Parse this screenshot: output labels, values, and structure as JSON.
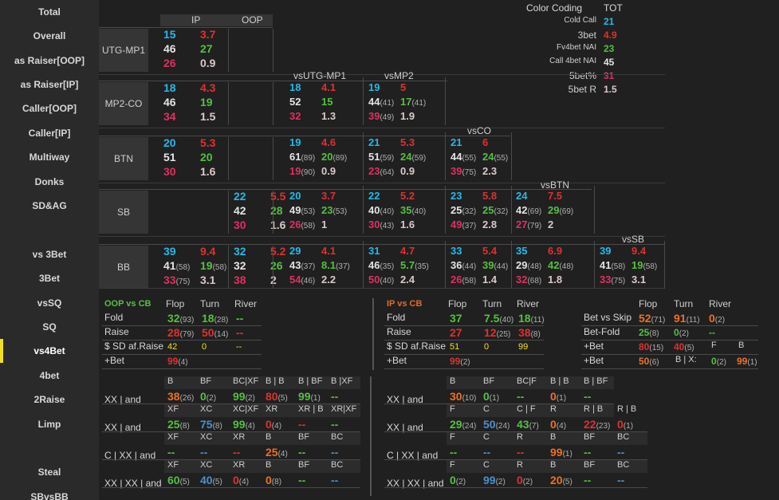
{
  "sidebar": {
    "items": [
      "Total",
      "Overall",
      "as Raiser[OOP]",
      "as Raiser[IP]",
      "Caller[OOP]",
      "Caller[IP]",
      "Multiway",
      "Donks",
      "SD&AG",
      "vs 3Bet",
      "3Bet",
      "vsSQ",
      "SQ",
      "vs4Bet",
      "4bet",
      "2Raise",
      "Limp",
      "Steal",
      "SBvsBB"
    ],
    "active": "vs4Bet"
  },
  "legend": {
    "title": "Color Coding",
    "tot": "TOT",
    "rows": [
      {
        "label": "Cold Call",
        "value": "21",
        "color": "#25b9e8"
      },
      {
        "label": "3bet",
        "value": "4.9",
        "color": "#e03030"
      },
      {
        "label": "Fv4bet NAI",
        "value": "23",
        "color": "#55c040"
      },
      {
        "label": "Call 4bet NAI",
        "value": "45",
        "color": "#e4e4e4"
      },
      {
        "label": "5bet%",
        "value": "31",
        "color": "#e03060"
      },
      {
        "label": "5bet R",
        "value": "1.5",
        "color": "#dcc8c8"
      }
    ]
  },
  "grid": {
    "ip": "IP",
    "oop": "OOP",
    "vs_headers": [
      "vsUTG-MP1",
      "vsMP2",
      "vsCO",
      "vsBTN",
      "vsSB"
    ],
    "positions": [
      "UTG-MP1",
      "MP2-CO",
      "BTN",
      "SB",
      "BB"
    ],
    "rowstats": [
      [
        [
          "15",
          ""
        ],
        [
          "3.7",
          ""
        ],
        [
          "46",
          ""
        ],
        [
          "27",
          ""
        ],
        [
          "26",
          ""
        ],
        [
          "0.9",
          ""
        ]
      ],
      [
        [
          "18",
          ""
        ],
        [
          "4.3",
          ""
        ],
        [
          "46",
          ""
        ],
        [
          "19",
          ""
        ],
        [
          "34",
          ""
        ],
        [
          "1.5",
          ""
        ]
      ],
      [
        [
          "20",
          ""
        ],
        [
          "5.3",
          ""
        ],
        [
          "51",
          ""
        ],
        [
          "20",
          ""
        ],
        [
          "30",
          ""
        ],
        [
          "1.6",
          ""
        ]
      ],
      [
        [
          "22",
          ""
        ],
        [
          "5.5",
          ""
        ],
        [
          "42",
          ""
        ],
        [
          "28",
          ""
        ],
        [
          "30",
          ""
        ],
        [
          "1.6",
          ""
        ]
      ],
      [
        [
          "39",
          ""
        ],
        [
          "9.4",
          ""
        ],
        [
          "41",
          "(58)"
        ],
        [
          "19",
          "(58)"
        ],
        [
          "33",
          "(75)"
        ],
        [
          "3.1",
          ""
        ]
      ],
      [
        [
          "32",
          ""
        ],
        [
          "5.2",
          ""
        ],
        [
          "32",
          ""
        ],
        [
          "26",
          ""
        ],
        [
          "38",
          ""
        ],
        [
          "2",
          ""
        ]
      ]
    ],
    "matchups": [
      {
        "col": 0,
        "row": 1,
        "v": [
          [
            "18",
            ""
          ],
          [
            "4.1",
            ""
          ],
          [
            "52",
            ""
          ],
          [
            "15",
            ""
          ],
          [
            "32",
            ""
          ],
          [
            "1.3",
            ""
          ]
        ]
      },
      {
        "col": 1,
        "row": 1,
        "v": [
          [
            "19",
            ""
          ],
          [
            "5",
            ""
          ],
          [
            "44",
            "(41)"
          ],
          [
            "17",
            "(41)"
          ],
          [
            "39",
            "(49)"
          ],
          [
            "1.9",
            ""
          ]
        ]
      },
      {
        "col": 0,
        "row": 2,
        "v": [
          [
            "19",
            ""
          ],
          [
            "4.6",
            ""
          ],
          [
            "61",
            "(89)"
          ],
          [
            "20",
            "(89)"
          ],
          [
            "19",
            "(90)"
          ],
          [
            "0.9",
            ""
          ]
        ]
      },
      {
        "col": 1,
        "row": 2,
        "v": [
          [
            "21",
            ""
          ],
          [
            "5.3",
            ""
          ],
          [
            "51",
            "(59)"
          ],
          [
            "24",
            "(59)"
          ],
          [
            "23",
            "(64)"
          ],
          [
            "0.9",
            ""
          ]
        ]
      },
      {
        "col": 2,
        "row": 2,
        "v": [
          [
            "21",
            ""
          ],
          [
            "6",
            ""
          ],
          [
            "44",
            "(55)"
          ],
          [
            "24",
            "(55)"
          ],
          [
            "39",
            "(75)"
          ],
          [
            "2.3",
            ""
          ]
        ]
      },
      {
        "col": 0,
        "row": 3,
        "v": [
          [
            "20",
            ""
          ],
          [
            "3.7",
            ""
          ],
          [
            "49",
            "(53)"
          ],
          [
            "23",
            "(53)"
          ],
          [
            "26",
            "(58)"
          ],
          [
            "1",
            ""
          ]
        ]
      },
      {
        "col": 1,
        "row": 3,
        "v": [
          [
            "22",
            ""
          ],
          [
            "5.2",
            ""
          ],
          [
            "40",
            "(40)"
          ],
          [
            "35",
            "(40)"
          ],
          [
            "30",
            "(43)"
          ],
          [
            "1.6",
            ""
          ]
        ]
      },
      {
        "col": 2,
        "row": 3,
        "v": [
          [
            "23",
            ""
          ],
          [
            "5.8",
            ""
          ],
          [
            "25",
            "(32)"
          ],
          [
            "25",
            "(32)"
          ],
          [
            "49",
            "(37)"
          ],
          [
            "2.8",
            ""
          ]
        ]
      },
      {
        "col": 3,
        "row": 3,
        "v": [
          [
            "24",
            ""
          ],
          [
            "7.5",
            ""
          ],
          [
            "42",
            "(69)"
          ],
          [
            "29",
            "(69)"
          ],
          [
            "27",
            "(79)"
          ],
          [
            "2",
            ""
          ]
        ]
      },
      {
        "col": 0,
        "row": 4,
        "v": [
          [
            "29",
            ""
          ],
          [
            "4.1",
            ""
          ],
          [
            "43",
            "(37)"
          ],
          [
            "8.1",
            "(37)"
          ],
          [
            "54",
            "(46)"
          ],
          [
            "2.2",
            ""
          ]
        ]
      },
      {
        "col": 1,
        "row": 4,
        "v": [
          [
            "31",
            ""
          ],
          [
            "4.7",
            ""
          ],
          [
            "46",
            "(35)"
          ],
          [
            "5.7",
            "(35)"
          ],
          [
            "50",
            "(40)"
          ],
          [
            "2.4",
            ""
          ]
        ]
      },
      {
        "col": 2,
        "row": 4,
        "v": [
          [
            "33",
            ""
          ],
          [
            "5.4",
            ""
          ],
          [
            "36",
            "(44)"
          ],
          [
            "39",
            "(44)"
          ],
          [
            "26",
            "(58)"
          ],
          [
            "1.4",
            ""
          ]
        ]
      },
      {
        "col": 3,
        "row": 4,
        "v": [
          [
            "35",
            ""
          ],
          [
            "6.9",
            ""
          ],
          [
            "29",
            "(48)"
          ],
          [
            "42",
            "(48)"
          ],
          [
            "32",
            "(68)"
          ],
          [
            "1.8",
            ""
          ]
        ]
      },
      {
        "col": 4,
        "row": 4,
        "v": [
          [
            "39",
            ""
          ],
          [
            "9.4",
            ""
          ],
          [
            "41",
            "(58)"
          ],
          [
            "19",
            "(58)"
          ],
          [
            "33",
            "(75)"
          ],
          [
            "3.1",
            ""
          ]
        ]
      }
    ]
  },
  "oop_cb": {
    "title": "OOP vs CB",
    "cols": [
      "Flop",
      "Turn",
      "River"
    ],
    "rows": [
      {
        "label": "Fold",
        "cells": [
          [
            "32",
            "(93)",
            "green"
          ],
          [
            "18",
            "(28)",
            "green"
          ],
          [
            "--",
            "",
            "green"
          ]
        ]
      },
      {
        "label": "Raise",
        "cells": [
          [
            "28",
            "(79)",
            "red"
          ],
          [
            "50",
            "(14)",
            "red"
          ],
          [
            "--",
            "",
            "red"
          ]
        ]
      },
      {
        "label": "$ SD af.Raise",
        "cells": [
          [
            "42",
            "",
            "yellow"
          ],
          [
            "0",
            "",
            "yellow"
          ],
          [
            "--",
            "",
            "yellow"
          ]
        ]
      },
      {
        "label": "+Bet",
        "cells": [
          [
            "99",
            "(4)",
            "red"
          ]
        ]
      }
    ]
  },
  "ip_cb": {
    "title": "IP vs CB",
    "cols": [
      "Flop",
      "Turn",
      "River"
    ],
    "rows": [
      {
        "label": "Fold",
        "cells": [
          [
            "37",
            "",
            "green"
          ],
          [
            "7.5",
            "(40)",
            "green"
          ],
          [
            "18",
            "(11)",
            "green"
          ]
        ]
      },
      {
        "label": "Raise",
        "cells": [
          [
            "27",
            "",
            "red"
          ],
          [
            "12",
            "(25)",
            "red"
          ],
          [
            "38",
            "(8)",
            "red"
          ]
        ]
      },
      {
        "label": "$ SD af.Raise",
        "cells": [
          [
            "51",
            "",
            "yellow"
          ],
          [
            "0",
            "",
            "yellow"
          ],
          [
            "99",
            "",
            "yellow"
          ]
        ]
      },
      {
        "label": "+Bet",
        "cells": [
          [
            "99",
            "(2)",
            "red"
          ]
        ]
      }
    ]
  },
  "bvs": {
    "cols": [
      "Flop",
      "Turn",
      "River"
    ],
    "rows": [
      {
        "label": "Bet vs Skip",
        "cells": [
          [
            "52",
            "(71)",
            "orange"
          ],
          [
            "91",
            "(11)",
            "orange"
          ],
          [
            "0",
            "(2)",
            "orange"
          ]
        ]
      },
      {
        "label": "Bet-Fold",
        "cells": [
          [
            "25",
            "(8)",
            "green"
          ],
          [
            "0",
            "(2)",
            "green"
          ],
          [
            "--",
            "",
            "green"
          ]
        ]
      },
      {
        "label": "+Bet",
        "cells": [
          [
            "80",
            "(15)",
            "red"
          ],
          [
            "40",
            "(5)",
            "red"
          ]
        ],
        "extra": [
          "F",
          "B"
        ]
      },
      {
        "label": "+Bet",
        "cells": [
          [
            "50",
            "(6)",
            "orange"
          ]
        ],
        "extra2": [
          "B | X:",
          "0",
          "(2)",
          "99",
          "(1)"
        ]
      }
    ]
  },
  "xx_left": {
    "rows": [
      {
        "label": "XX | and",
        "heads": [
          "B",
          "BF",
          "BC|XF",
          "B | B",
          "B | BF",
          "B |XF"
        ],
        "cells": [
          [
            "38",
            "(26)",
            "orange"
          ],
          [
            "0",
            "(2)",
            "green"
          ],
          [
            "99",
            "(2)",
            "green"
          ],
          [
            "80",
            "(5)",
            "red"
          ],
          [
            "99",
            "(1)",
            "green"
          ],
          [
            "--",
            "",
            "green"
          ]
        ]
      },
      {
        "label": "XX | and",
        "heads": [
          "XF",
          "XC",
          "XC|XF",
          "XR",
          "XR | B",
          "XR|XF"
        ],
        "cells": [
          [
            "25",
            "(8)",
            "green"
          ],
          [
            "75",
            "(8)",
            "blue"
          ],
          [
            "99",
            "(4)",
            "green"
          ],
          [
            "0",
            "(4)",
            "red"
          ],
          [
            "--",
            "",
            "red"
          ],
          [
            "--",
            "",
            "green"
          ]
        ]
      },
      {
        "label": "C | XX | and",
        "heads": [
          "XF",
          "XC",
          "XR",
          "B",
          "BF",
          "BC"
        ],
        "cells": [
          [
            "--",
            "",
            "green"
          ],
          [
            "--",
            "",
            "blue"
          ],
          [
            "--",
            "",
            "red"
          ],
          [
            "25",
            "(4)",
            "orange"
          ],
          [
            "--",
            "",
            "green"
          ],
          [
            "--",
            "",
            "blue"
          ]
        ]
      },
      {
        "label": "XX | XX | and",
        "heads": [
          "XF",
          "XC",
          "XR",
          "B",
          "BF",
          "BC"
        ],
        "cells": [
          [
            "60",
            "(5)",
            "green"
          ],
          [
            "40",
            "(5)",
            "blue"
          ],
          [
            "0",
            "(4)",
            "red"
          ],
          [
            "0",
            "(8)",
            "orange"
          ],
          [
            "--",
            "",
            "green"
          ],
          [
            "--",
            "",
            "blue"
          ]
        ]
      }
    ]
  },
  "xx_right": {
    "rows": [
      {
        "label": "XX | and",
        "heads": [
          "B",
          "BF",
          "BC|F",
          "B | B",
          "B | BF"
        ],
        "cells": [
          [
            "30",
            "(10)",
            "orange"
          ],
          [
            "0",
            "(1)",
            "green"
          ],
          [
            "--",
            "",
            "green"
          ],
          [
            "0",
            "(1)",
            "orange"
          ],
          [
            "--",
            "",
            "green"
          ]
        ]
      },
      {
        "label": "XX | and",
        "heads": [
          "F",
          "C",
          "C | F",
          "R",
          "R | B"
        ],
        "cells": [
          [
            "29",
            "(24)",
            "green"
          ],
          [
            "50",
            "(24)",
            "blue"
          ],
          [
            "43",
            "(7)",
            "green"
          ],
          [
            "0",
            "(4)",
            "orange"
          ],
          [
            "22",
            "(23)",
            "red"
          ],
          [
            "0",
            "(1)",
            "red"
          ]
        ],
        "extra_head": "R | B"
      },
      {
        "label": "C | XX | and",
        "heads": [
          "F",
          "C",
          "R",
          "B",
          "BF",
          "BC"
        ],
        "cells": [
          [
            "--",
            "",
            "green"
          ],
          [
            "--",
            "",
            "blue"
          ],
          [
            "--",
            "",
            "red"
          ],
          [
            "99",
            "(1)",
            "orange"
          ],
          [
            "--",
            "",
            "green"
          ],
          [
            "--",
            "",
            "blue"
          ]
        ]
      },
      {
        "label": "XX | XX | and",
        "heads": [
          "F",
          "C",
          "R",
          "B",
          "BF",
          "BC"
        ],
        "cells": [
          [
            "0",
            "(2)",
            "green"
          ],
          [
            "99",
            "(2)",
            "blue"
          ],
          [
            "0",
            "(2)",
            "red"
          ],
          [
            "20",
            "(5)",
            "orange"
          ],
          [
            "--",
            "",
            "green"
          ],
          [
            "--",
            "",
            "blue"
          ]
        ]
      }
    ]
  }
}
